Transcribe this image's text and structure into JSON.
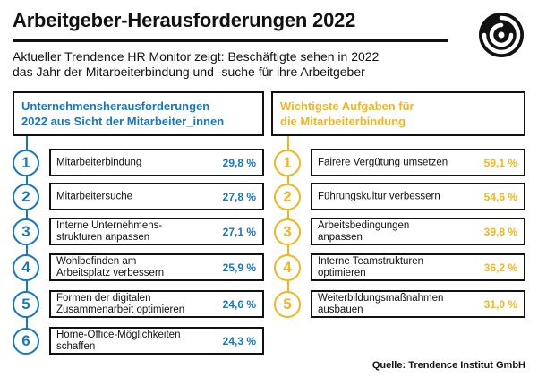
{
  "header": {
    "title": "Arbeitgeber-Herausforderungen 2022",
    "subtitle_line1": "Aktueller Trendence HR Monitor zeigt: Beschäftigte sehen in 2022",
    "subtitle_line2": "das Jahr der Mitarbeiterbindung und -suche für ihre Arbeitgeber",
    "logo_icon": "spiral-logo-icon"
  },
  "colors": {
    "blue": "#1677c4",
    "yellow": "#f2b51e",
    "dark": "#111111"
  },
  "chart_data": [
    {
      "type": "table",
      "title_line1": "Unternehmensherausforderungen",
      "title_line2": "2022 aus Sicht der Mitarbeiter_innen",
      "accent": "#1677c4",
      "rows": [
        {
          "rank": "1",
          "label_line1": "Mitarbeiterbindung",
          "label_line2": "",
          "value": 29.8,
          "value_label": "29,8 %"
        },
        {
          "rank": "2",
          "label_line1": "Mitarbeitersuche",
          "label_line2": "",
          "value": 27.8,
          "value_label": "27,8 %"
        },
        {
          "rank": "3",
          "label_line1": "Interne Unternehmens-",
          "label_line2": "strukturen anpassen",
          "value": 27.1,
          "value_label": "27,1 %"
        },
        {
          "rank": "4",
          "label_line1": "Wohlbefinden am",
          "label_line2": "Arbeitsplatz verbessern",
          "value": 25.9,
          "value_label": "25,9 %"
        },
        {
          "rank": "5",
          "label_line1": "Formen der digitalen",
          "label_line2": "Zusammenarbeit optimieren",
          "value": 24.6,
          "value_label": "24,6 %"
        },
        {
          "rank": "6",
          "label_line1": "Home-Office-Möglichkeiten",
          "label_line2": "schaffen",
          "value": 24.3,
          "value_label": "24,3 %"
        }
      ]
    },
    {
      "type": "table",
      "title_line1": "Wichtigste Aufgaben für",
      "title_line2": "die Mitarbeiterbindung",
      "accent": "#f2b51e",
      "rows": [
        {
          "rank": "1",
          "label_line1": "Fairere Vergütung umsetzen",
          "label_line2": "",
          "value": 59.1,
          "value_label": "59,1 %"
        },
        {
          "rank": "2",
          "label_line1": "Führungskultur verbessern",
          "label_line2": "",
          "value": 54.6,
          "value_label": "54,6 %"
        },
        {
          "rank": "3",
          "label_line1": "Arbeitsbedingungen",
          "label_line2": "anpassen",
          "value": 39.8,
          "value_label": "39,8 %"
        },
        {
          "rank": "4",
          "label_line1": "Interne Teamstrukturen",
          "label_line2": "optimieren",
          "value": 36.2,
          "value_label": "36,2 %"
        },
        {
          "rank": "5",
          "label_line1": "Weiterbildungsmaßnahmen",
          "label_line2": "ausbauen",
          "value": 31.0,
          "value_label": "31,0 %"
        }
      ]
    }
  ],
  "footer": {
    "source": "Quelle: Trendence Institut GmbH"
  }
}
